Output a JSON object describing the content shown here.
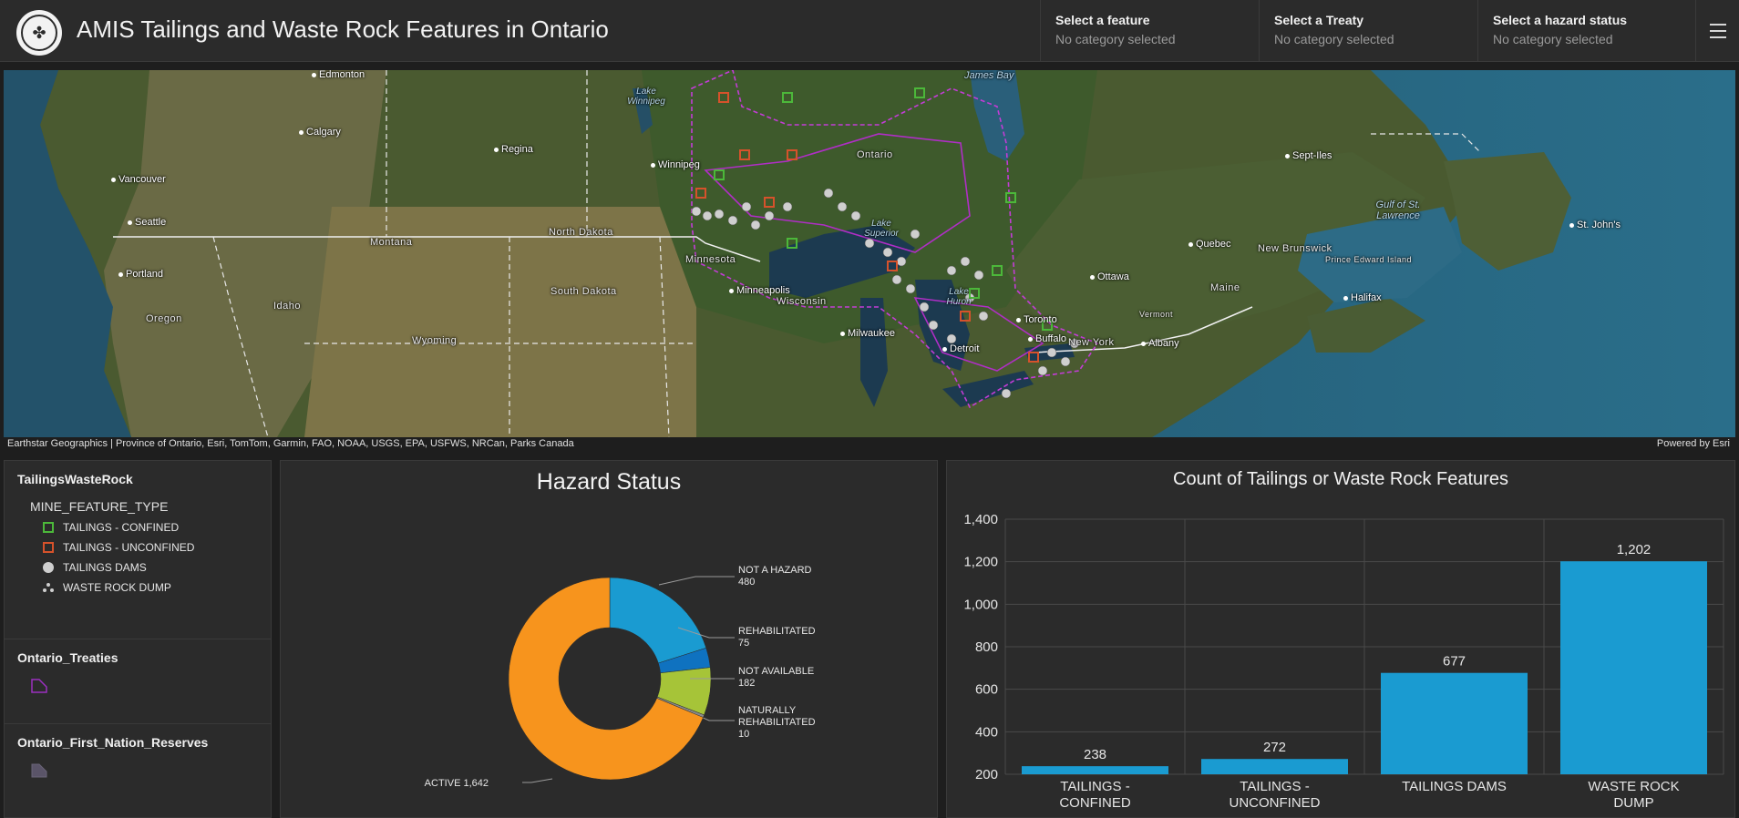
{
  "header": {
    "title": "AMIS Tailings and Waste Rock Features in Ontario",
    "selectors": [
      {
        "label": "Select a feature",
        "value": "No category selected"
      },
      {
        "label": "Select a Treaty",
        "value": "No category selected"
      },
      {
        "label": "Select a hazard status",
        "value": "No category selected"
      }
    ],
    "menu_icon": "hamburger-menu-icon"
  },
  "map": {
    "cities": [
      "Edmonton",
      "Calgary",
      "Regina",
      "Winnipeg",
      "Vancouver",
      "Seattle",
      "Portland",
      "Minneapolis",
      "Milwaukee",
      "Detroit",
      "Toronto",
      "Buffalo",
      "Ottawa",
      "Quebec",
      "Halifax",
      "St. John's",
      "Sept-Iles",
      "Albany"
    ],
    "regions": [
      "Ontario",
      "North Dakota",
      "Montana",
      "Minnesota",
      "South Dakota",
      "Wisconsin",
      "Idaho",
      "Oregon",
      "Wyoming",
      "New Brunswick",
      "Prince Edward Island",
      "Maine",
      "Vermont",
      "New York"
    ],
    "water": [
      "James Bay",
      "Lake Winnipeg",
      "Lake Superior",
      "Lake Huron",
      "Gulf of St. Lawrence"
    ],
    "attribution": "Earthstar Geographics | Province of Ontario, Esri, TomTom, Garmin, FAO, NOAA, USGS, EPA, USFWS, NRCan, Parks Canada",
    "powered_by": "Powered by Esri"
  },
  "legend": {
    "layer1": {
      "title": "TailingsWasteRock",
      "field": "MINE_FEATURE_TYPE",
      "items": [
        {
          "label": "TAILINGS - CONFINED",
          "icon": "green-square-icon"
        },
        {
          "label": "TAILINGS - UNCONFINED",
          "icon": "orange-square-icon"
        },
        {
          "label": "TAILINGS DAMS",
          "icon": "dam-circle-icon"
        },
        {
          "label": "WASTE ROCK DUMP",
          "icon": "rock-dump-icon"
        }
      ]
    },
    "layer2": {
      "title": "Ontario_Treaties",
      "icon": "purple-polygon-icon"
    },
    "layer3": {
      "title": "Ontario_First_Nation_Reserves",
      "icon": "grey-polygon-icon"
    }
  },
  "chart_data": [
    {
      "type": "pie",
      "title": "Hazard Status",
      "donut": true,
      "slices": [
        {
          "label": "NOT A HAZARD",
          "value": 480,
          "color": "#1a9bd1"
        },
        {
          "label": "REHABILITATED",
          "value": 75,
          "color": "#0f72c0"
        },
        {
          "label": "NOT AVAILABLE",
          "value": 182,
          "color": "#a6c438"
        },
        {
          "label": "NATURALLY REHABILITATED",
          "value": 10,
          "color": "#8a8a8a"
        },
        {
          "label": "ACTIVE",
          "value": 1642,
          "color": "#f7941d"
        }
      ]
    },
    {
      "type": "bar",
      "title": "Count of Tailings or Waste Rock Features",
      "categories": [
        "TAILINGS - CONFINED",
        "TAILINGS - UNCONFINED",
        "TAILINGS DAMS",
        "WASTE ROCK DUMP"
      ],
      "values": [
        238,
        272,
        677,
        1202
      ],
      "yticks": [
        "200",
        "400",
        "600",
        "800",
        "1,000",
        "1,200",
        "1,400"
      ],
      "value_labels": [
        "238",
        "272",
        "677",
        "1,202"
      ],
      "ylim": [
        200,
        1400
      ],
      "grid": true,
      "color": "#1a9bd1"
    }
  ]
}
